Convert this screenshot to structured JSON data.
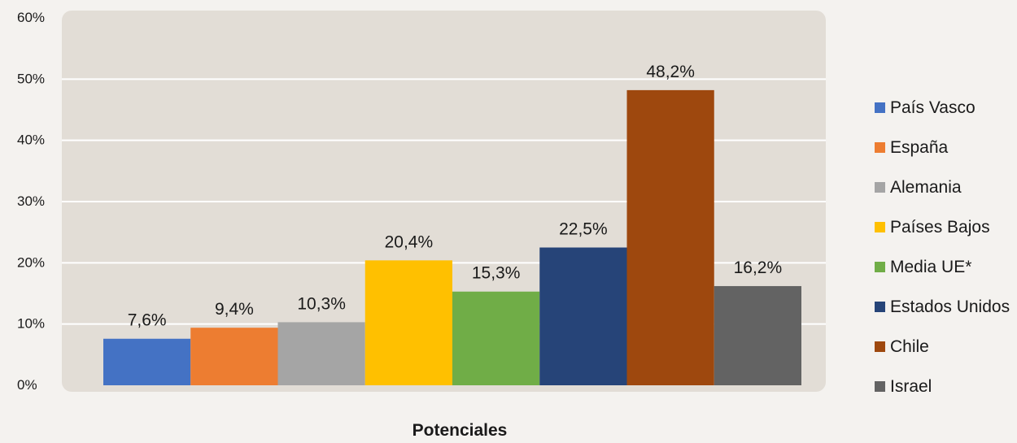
{
  "chart_data": {
    "type": "bar",
    "xlabel": "Potenciales",
    "categories": [
      "Potenciales"
    ],
    "ylim": [
      0,
      60
    ],
    "y_ticks": [
      "0%",
      "10%",
      "20%",
      "30%",
      "40%",
      "50%",
      "60%"
    ],
    "grid": true,
    "legend_position": "right",
    "series": [
      {
        "name": "País Vasco",
        "value": 7.6,
        "label": "7,6%",
        "color": "#4472c4"
      },
      {
        "name": "España",
        "value": 9.4,
        "label": "9,4%",
        "color": "#ed7d31"
      },
      {
        "name": "Alemania",
        "value": 10.3,
        "label": "10,3%",
        "color": "#a5a5a5"
      },
      {
        "name": "Países Bajos",
        "value": 20.4,
        "label": "20,4%",
        "color": "#ffc000"
      },
      {
        "name": "Media UE*",
        "value": 15.3,
        "label": "15,3%",
        "color": "#70ad47"
      },
      {
        "name": "Estados Unidos",
        "value": 22.5,
        "label": "22,5%",
        "color": "#264478"
      },
      {
        "name": "Chile",
        "value": 48.2,
        "label": "48,2%",
        "color": "#9e480e"
      },
      {
        "name": "Israel",
        "value": 16.2,
        "label": "16,2%",
        "color": "#636363"
      }
    ],
    "plot_background": "#e2ddd6",
    "page_background": "#f4f2ef"
  }
}
